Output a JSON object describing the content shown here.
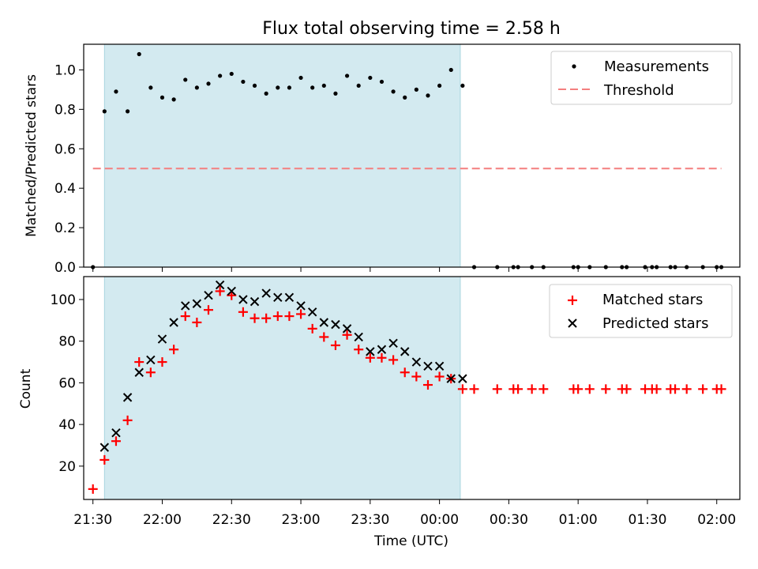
{
  "chart_data": [
    {
      "type": "scatter",
      "title": "Flux total observing time = 2.58 h",
      "xlabel": "",
      "ylabel": "Matched/Predicted stars",
      "xlim": [
        "21:26",
        "02:10"
      ],
      "ylim": [
        0,
        1.13
      ],
      "y_ticks": [
        "0.0",
        "0.2",
        "0.4",
        "0.6",
        "0.8",
        "1.0"
      ],
      "highlight_span": [
        "21:35",
        "00:09"
      ],
      "highlight_color": "#d3eaf0",
      "grid": false,
      "legend_position": "top-right",
      "series": [
        {
          "name": "Measurements",
          "marker": "dot",
          "color": "#000000",
          "x": [
            "21:30",
            "21:35",
            "21:40",
            "21:45",
            "21:50",
            "21:55",
            "22:00",
            "22:05",
            "22:10",
            "22:15",
            "22:20",
            "22:25",
            "22:30",
            "22:35",
            "22:40",
            "22:45",
            "22:50",
            "22:55",
            "23:00",
            "23:05",
            "23:10",
            "23:15",
            "23:20",
            "23:25",
            "23:30",
            "23:35",
            "23:40",
            "23:45",
            "23:50",
            "23:55",
            "24:00",
            "24:05",
            "24:10",
            "24:15",
            "24:25",
            "24:32",
            "24:34",
            "24:40",
            "24:45",
            "24:58",
            "25:00",
            "25:05",
            "25:12",
            "25:19",
            "25:21",
            "25:29",
            "25:32",
            "25:34",
            "25:40",
            "25:42",
            "25:47",
            "25:54",
            "26:00",
            "26:02"
          ],
          "y": [
            0,
            0.79,
            0.89,
            0.79,
            1.08,
            0.91,
            0.86,
            0.85,
            0.95,
            0.91,
            0.93,
            0.97,
            0.98,
            0.94,
            0.92,
            0.88,
            0.91,
            0.91,
            0.96,
            0.91,
            0.92,
            0.88,
            0.97,
            0.92,
            0.96,
            0.94,
            0.89,
            0.86,
            0.9,
            0.87,
            0.92,
            1.0,
            0.92,
            0,
            0,
            0,
            0,
            0,
            0,
            0,
            0,
            0,
            0,
            0,
            0,
            0,
            0,
            0,
            0,
            0,
            0,
            0,
            0,
            0
          ]
        },
        {
          "name": "Threshold",
          "marker": "dashed-line",
          "color": "#f47f7f",
          "x": [
            "21:30",
            "02:02"
          ],
          "y": [
            0.5,
            0.5
          ]
        }
      ]
    },
    {
      "type": "scatter",
      "title": "",
      "xlabel": "Time (UTC)",
      "ylabel": "Count",
      "xlim": [
        "21:26",
        "02:10"
      ],
      "ylim": [
        4,
        111
      ],
      "x_ticks": [
        "21:30",
        "22:00",
        "22:30",
        "23:00",
        "23:30",
        "00:00",
        "00:30",
        "01:00",
        "01:30",
        "02:00"
      ],
      "y_ticks": [
        "20",
        "40",
        "60",
        "80",
        "100"
      ],
      "highlight_span": [
        "21:35",
        "00:09"
      ],
      "highlight_color": "#d3eaf0",
      "grid": false,
      "legend_position": "top-right",
      "series": [
        {
          "name": "Matched stars",
          "marker": "plus",
          "color": "#ff0000",
          "x": [
            "21:30",
            "21:35",
            "21:40",
            "21:45",
            "21:50",
            "21:55",
            "22:00",
            "22:05",
            "22:10",
            "22:15",
            "22:20",
            "22:25",
            "22:30",
            "22:35",
            "22:40",
            "22:45",
            "22:50",
            "22:55",
            "23:00",
            "23:05",
            "23:10",
            "23:15",
            "23:20",
            "23:25",
            "23:30",
            "23:35",
            "23:40",
            "23:45",
            "23:50",
            "23:55",
            "24:00",
            "24:05",
            "24:10",
            "24:15",
            "24:25",
            "24:32",
            "24:34",
            "24:40",
            "24:45",
            "24:58",
            "25:00",
            "25:05",
            "25:12",
            "25:19",
            "25:21",
            "25:29",
            "25:32",
            "25:34",
            "25:40",
            "25:42",
            "25:47",
            "25:54",
            "26:00",
            "26:02"
          ],
          "y": [
            9,
            23,
            32,
            42,
            70,
            65,
            70,
            76,
            92,
            89,
            95,
            104,
            102,
            94,
            91,
            91,
            92,
            92,
            93,
            86,
            82,
            78,
            83,
            76,
            72,
            72,
            71,
            65,
            63,
            59,
            63,
            62,
            57,
            57,
            57,
            57,
            57,
            57,
            57,
            57,
            57,
            57,
            57,
            57,
            57,
            57,
            57,
            57,
            57,
            57,
            57,
            57,
            57,
            57
          ]
        },
        {
          "name": "Predicted stars",
          "marker": "x",
          "color": "#000000",
          "x": [
            "21:35",
            "21:40",
            "21:45",
            "21:50",
            "21:55",
            "22:00",
            "22:05",
            "22:10",
            "22:15",
            "22:20",
            "22:25",
            "22:30",
            "22:35",
            "22:40",
            "22:45",
            "22:50",
            "22:55",
            "23:00",
            "23:05",
            "23:10",
            "23:15",
            "23:20",
            "23:25",
            "23:30",
            "23:35",
            "23:40",
            "23:45",
            "23:50",
            "23:55",
            "24:00",
            "24:05",
            "24:10"
          ],
          "y": [
            29,
            36,
            53,
            65,
            71,
            81,
            89,
            97,
            98,
            102,
            107,
            104,
            100,
            99,
            103,
            101,
            101,
            97,
            94,
            89,
            88,
            86,
            82,
            75,
            76,
            79,
            75,
            70,
            68,
            68,
            62,
            62
          ]
        }
      ]
    }
  ]
}
